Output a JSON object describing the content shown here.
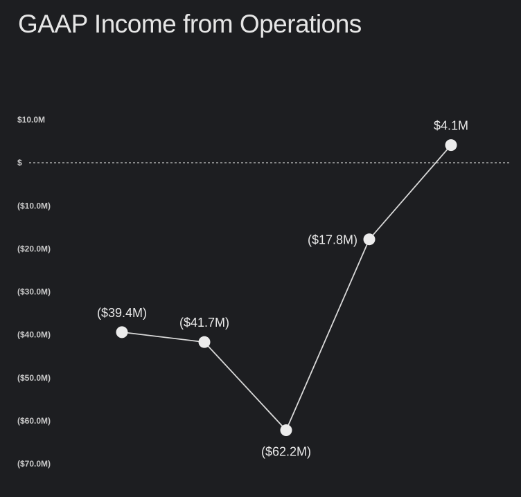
{
  "chart_data": {
    "type": "line",
    "title": "GAAP Income from Operations",
    "xlabel": "",
    "ylabel": "",
    "ylim": [
      -70,
      10
    ],
    "yticks": [
      {
        "value": 10,
        "label": "$10.0M"
      },
      {
        "value": 0,
        "label": "$"
      },
      {
        "value": -10,
        "label": "($10.0M)"
      },
      {
        "value": -20,
        "label": "($20.0M)"
      },
      {
        "value": -30,
        "label": "($30.0M)"
      },
      {
        "value": -40,
        "label": "($40.0M)"
      },
      {
        "value": -50,
        "label": "($50.0M)"
      },
      {
        "value": -60,
        "label": "($60.0M)"
      },
      {
        "value": -70,
        "label": "($70.0M)"
      }
    ],
    "zero_line": "dashed",
    "grid": false,
    "series": [
      {
        "values": [
          -39.4,
          -41.7,
          -62.2,
          -17.8,
          4.1
        ],
        "labels": [
          "($39.4M)",
          "($41.7M)",
          "($62.2M)",
          "($17.8M)",
          "$4.1M"
        ],
        "label_positions": [
          "above",
          "above",
          "below",
          "left",
          "above"
        ]
      }
    ],
    "colors": {
      "background": "#1d1e21",
      "line": "#d9d9d9",
      "marker": "#ececec",
      "text": "#e8e8e8"
    }
  }
}
